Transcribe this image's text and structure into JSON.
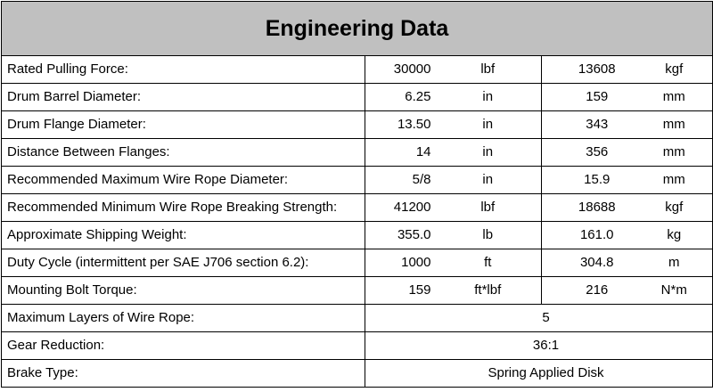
{
  "title": "Engineering Data",
  "rows": [
    {
      "label": "Rated  Pulling Force:",
      "v1": "30000",
      "u1": "lbf",
      "v2": "13608",
      "u2": "kgf"
    },
    {
      "label": "Drum Barrel Diameter:",
      "v1": "6.25",
      "u1": "in",
      "v2": "159",
      "u2": "mm"
    },
    {
      "label": "Drum Flange Diameter:",
      "v1": "13.50",
      "u1": "in",
      "v2": "343",
      "u2": "mm"
    },
    {
      "label": "Distance Between Flanges:",
      "v1": "14",
      "u1": "in",
      "v2": "356",
      "u2": "mm"
    },
    {
      "label": "Recommended Maximum Wire Rope Diameter:",
      "v1": "5/8",
      "u1": "in",
      "v2": "15.9",
      "u2": "mm"
    },
    {
      "label": "Recommended Minimum Wire Rope Breaking Strength:",
      "v1": "41200",
      "u1": "lbf",
      "v2": "18688",
      "u2": "kgf"
    },
    {
      "label": "Approximate Shipping Weight:",
      "v1": "355.0",
      "u1": "lb",
      "v2": "161.0",
      "u2": "kg"
    },
    {
      "label": "Duty Cycle (intermittent per SAE J706 section 6.2):",
      "v1": "1000",
      "u1": "ft",
      "v2": "304.8",
      "u2": "m"
    },
    {
      "label": "Mounting Bolt Torque:",
      "v1": "159",
      "u1": "ft*lbf",
      "v2": "216",
      "u2": "N*m"
    }
  ],
  "span_rows": [
    {
      "label": "Maximum Layers of Wire Rope:",
      "value": "5"
    },
    {
      "label": "Gear Reduction:",
      "value": "36:1"
    },
    {
      "label": "Brake Type:",
      "value": "Spring Applied Disk"
    }
  ]
}
